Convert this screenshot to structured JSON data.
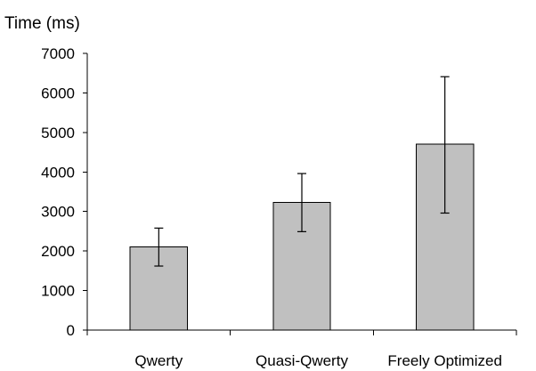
{
  "chart_data": {
    "type": "bar",
    "title": "",
    "ylabel": "Time (ms)",
    "xlabel": "",
    "categories": [
      "Qwerty",
      "Quasi-Qwerty",
      "Freely Optimized"
    ],
    "values": [
      2100,
      3230,
      4700
    ],
    "error_low": [
      1620,
      2490,
      2960
    ],
    "error_high": [
      2580,
      3960,
      6410
    ],
    "ylim": [
      0,
      7000
    ],
    "yticks": [
      0,
      1000,
      2000,
      3000,
      4000,
      5000,
      6000,
      7000
    ],
    "grid": false,
    "legend": "none",
    "colors": {
      "bar_fill": "#c0c0c0",
      "bar_stroke": "#000000",
      "axis": "#000000"
    }
  }
}
